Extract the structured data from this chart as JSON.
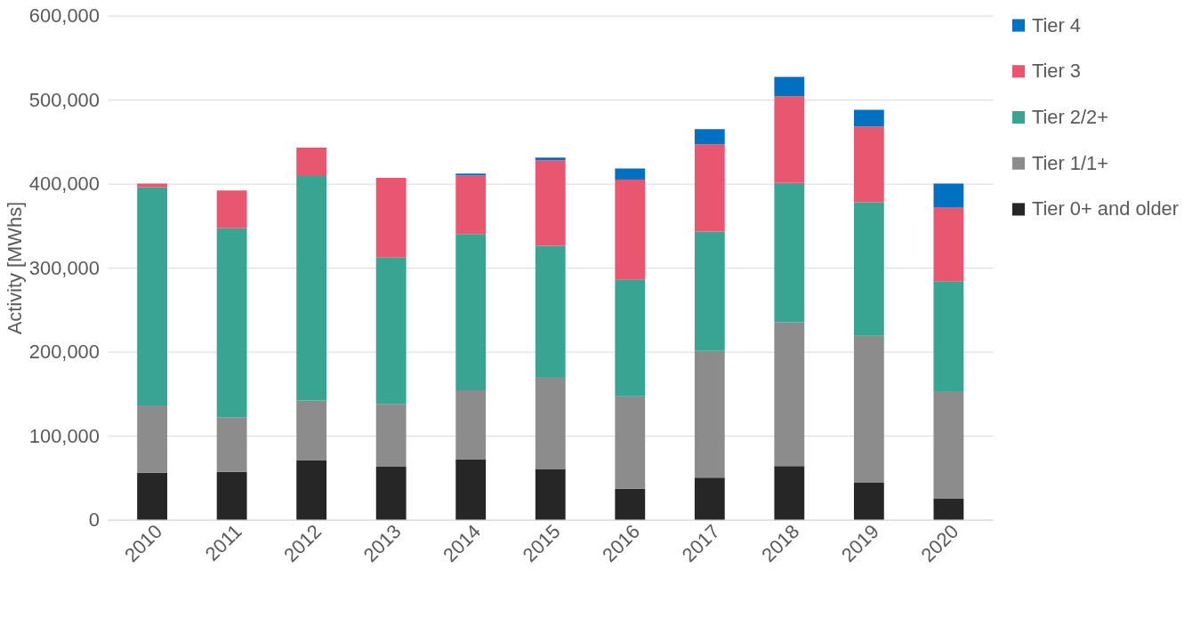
{
  "chart_data": {
    "type": "bar",
    "stacked": true,
    "ylabel": "Activity [MWhs]",
    "categories": [
      "2010",
      "2011",
      "2012",
      "2013",
      "2014",
      "2015",
      "2016",
      "2017",
      "2018",
      "2019",
      "2020"
    ],
    "series": [
      {
        "name": "Tier 0+ and older",
        "color": "#262626",
        "values": [
          56000,
          57000,
          71000,
          63000,
          72000,
          60000,
          37000,
          50000,
          64000,
          44000,
          25000
        ]
      },
      {
        "name": "Tier 1/1+",
        "color": "#8c8c8c",
        "values": [
          80000,
          65000,
          71000,
          75000,
          82000,
          110000,
          110000,
          151000,
          171000,
          175000,
          128000
        ]
      },
      {
        "name": "Tier 2/2+",
        "color": "#38a593",
        "values": [
          260000,
          225000,
          267000,
          174000,
          186000,
          156000,
          139000,
          142000,
          166000,
          159000,
          131000
        ]
      },
      {
        "name": "Tier 3",
        "color": "#e8566f",
        "values": [
          4000,
          45000,
          34000,
          95000,
          70000,
          102000,
          119000,
          104000,
          103000,
          90000,
          88000
        ]
      },
      {
        "name": "Tier 4",
        "color": "#0070c0",
        "values": [
          0,
          0,
          0,
          0,
          2000,
          3000,
          13000,
          18000,
          23000,
          20000,
          28000
        ]
      }
    ],
    "ylim": [
      0,
      600000
    ],
    "yticks": [
      {
        "value": 0,
        "label": "0"
      },
      {
        "value": 100000,
        "label": "100,000"
      },
      {
        "value": 200000,
        "label": "200,000"
      },
      {
        "value": 300000,
        "label": "300,000"
      },
      {
        "value": 400000,
        "label": "400,000"
      },
      {
        "value": 500000,
        "label": "500,000"
      },
      {
        "value": 600000,
        "label": "600,000"
      }
    ],
    "grid": "y",
    "legend": "right"
  }
}
